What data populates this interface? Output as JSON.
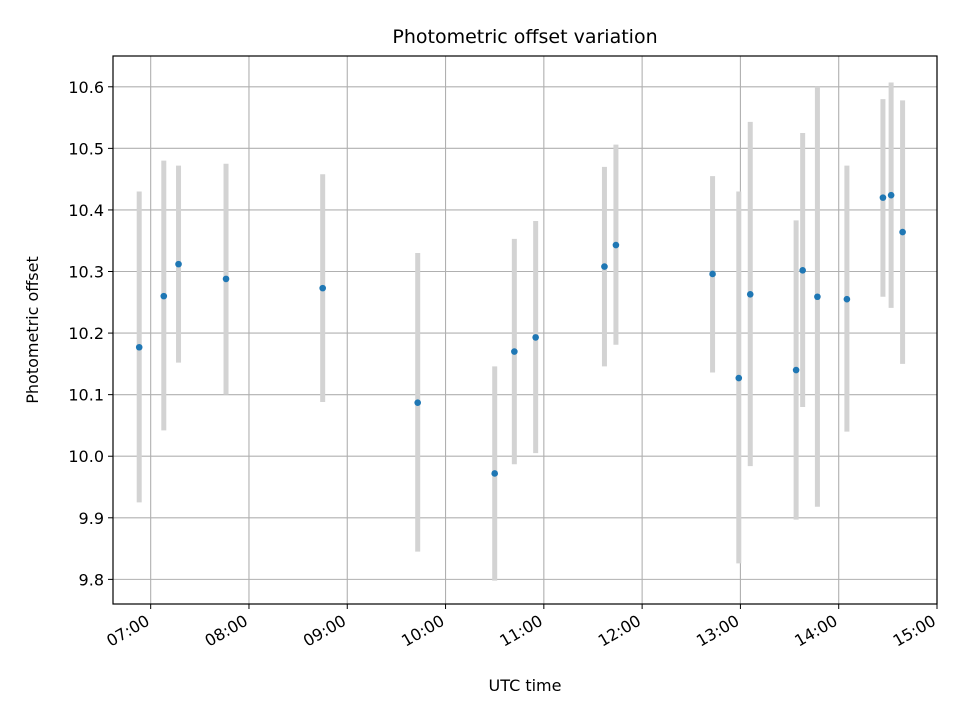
{
  "chart_data": {
    "type": "scatter",
    "title": "Photometric offset variation",
    "xlabel": "UTC time",
    "ylabel": "Photometric offset",
    "x_ticks": [
      "07:00",
      "08:00",
      "09:00",
      "10:00",
      "11:00",
      "12:00",
      "13:00",
      "14:00",
      "15:00"
    ],
    "y_ticks": [
      "9.8",
      "9.9",
      "10.0",
      "10.1",
      "10.2",
      "10.3",
      "10.4",
      "10.5",
      "10.6"
    ],
    "xlim": [
      "06:37",
      "15:00"
    ],
    "ylim": [
      9.76,
      10.65
    ],
    "grid": true,
    "point_color": "#1f77b4",
    "errorbar_color": "#d3d3d3",
    "points": [
      {
        "x": "06:53",
        "y": 10.177,
        "low": 9.925,
        "high": 10.43
      },
      {
        "x": "07:08",
        "y": 10.26,
        "low": 10.042,
        "high": 10.48
      },
      {
        "x": "07:17",
        "y": 10.312,
        "low": 10.152,
        "high": 10.472
      },
      {
        "x": "07:46",
        "y": 10.288,
        "low": 10.1,
        "high": 10.475
      },
      {
        "x": "08:45",
        "y": 10.273,
        "low": 10.088,
        "high": 10.458
      },
      {
        "x": "09:43",
        "y": 10.087,
        "low": 9.845,
        "high": 10.33
      },
      {
        "x": "10:30",
        "y": 9.972,
        "low": 9.798,
        "high": 10.146
      },
      {
        "x": "10:42",
        "y": 10.17,
        "low": 9.987,
        "high": 10.353
      },
      {
        "x": "10:55",
        "y": 10.193,
        "low": 10.005,
        "high": 10.382
      },
      {
        "x": "11:37",
        "y": 10.308,
        "low": 10.146,
        "high": 10.47
      },
      {
        "x": "11:44",
        "y": 10.343,
        "low": 10.181,
        "high": 10.506
      },
      {
        "x": "12:43",
        "y": 10.296,
        "low": 10.136,
        "high": 10.455
      },
      {
        "x": "12:59",
        "y": 10.127,
        "low": 9.826,
        "high": 10.43
      },
      {
        "x": "13:06",
        "y": 10.263,
        "low": 9.984,
        "high": 10.543
      },
      {
        "x": "13:34",
        "y": 10.14,
        "low": 9.897,
        "high": 10.383
      },
      {
        "x": "13:38",
        "y": 10.302,
        "low": 10.08,
        "high": 10.525
      },
      {
        "x": "13:47",
        "y": 10.259,
        "low": 9.918,
        "high": 10.6
      },
      {
        "x": "14:05",
        "y": 10.255,
        "low": 10.04,
        "high": 10.472
      },
      {
        "x": "14:27",
        "y": 10.42,
        "low": 10.259,
        "high": 10.58
      },
      {
        "x": "14:32",
        "y": 10.424,
        "low": 10.241,
        "high": 10.607
      },
      {
        "x": "14:39",
        "y": 10.364,
        "low": 10.15,
        "high": 10.578
      }
    ]
  }
}
